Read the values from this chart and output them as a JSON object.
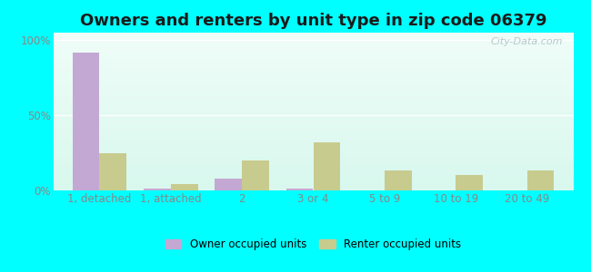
{
  "title": "Owners and renters by unit type in zip code 06379",
  "categories": [
    "1, detached",
    "1, attached",
    "2",
    "3 or 4",
    "5 to 9",
    "10 to 19",
    "20 to 49"
  ],
  "owner_values": [
    92,
    1,
    8,
    1,
    0,
    0,
    0
  ],
  "renter_values": [
    25,
    4,
    20,
    32,
    13,
    10,
    13
  ],
  "owner_color": "#c4a8d4",
  "renter_color": "#c8cb8e",
  "background_outer": "#00ffff",
  "background_inner_top": "#f0fdf8",
  "background_inner_bottom": "#d8f8ee",
  "title_fontsize": 13,
  "ylabel_values": [
    0,
    50,
    100
  ],
  "ylabel_labels": [
    "0%",
    "50%",
    "100%"
  ],
  "ylim": [
    0,
    105
  ],
  "bar_width": 0.38,
  "legend_owner": "Owner occupied units",
  "legend_renter": "Renter occupied units",
  "watermark": "City-Data.com",
  "tick_color": "#888888",
  "tick_fontsize": 8.5
}
